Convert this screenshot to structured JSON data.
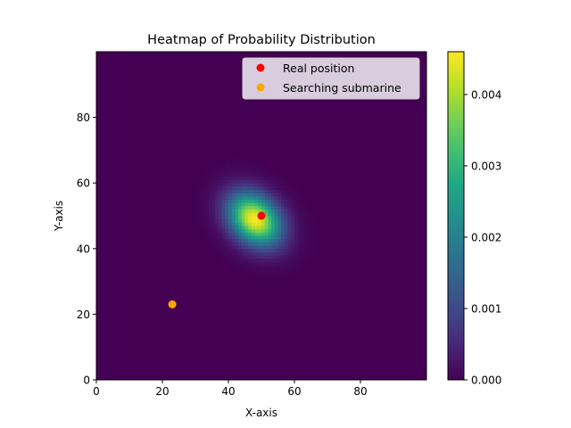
{
  "chart_data": {
    "type": "heatmap",
    "title": "Heatmap of Probability Distribution",
    "xlabel": "X-axis",
    "ylabel": "Y-axis",
    "xlim": [
      0,
      100
    ],
    "ylim": [
      0,
      100
    ],
    "x_ticks": [
      0,
      20,
      40,
      60,
      80
    ],
    "y_ticks": [
      0,
      20,
      40,
      60,
      80
    ],
    "colormap": "viridis",
    "colorbar": {
      "min": 0,
      "max": 0.0046,
      "ticks": [
        "0.000",
        "0.001",
        "0.002",
        "0.003",
        "0.004"
      ]
    },
    "distribution": {
      "shape": "gaussian",
      "center": [
        48,
        49
      ],
      "peak": 0.0046
    },
    "points": [
      {
        "name": "Real position",
        "x": 50,
        "y": 50,
        "color": "#ff0000"
      },
      {
        "name": "Searching submarine",
        "x": 23,
        "y": 23,
        "color": "#ffa500"
      }
    ],
    "legend": {
      "placement": "top-right",
      "entries": [
        "Real position",
        "Searching submarine"
      ]
    }
  }
}
